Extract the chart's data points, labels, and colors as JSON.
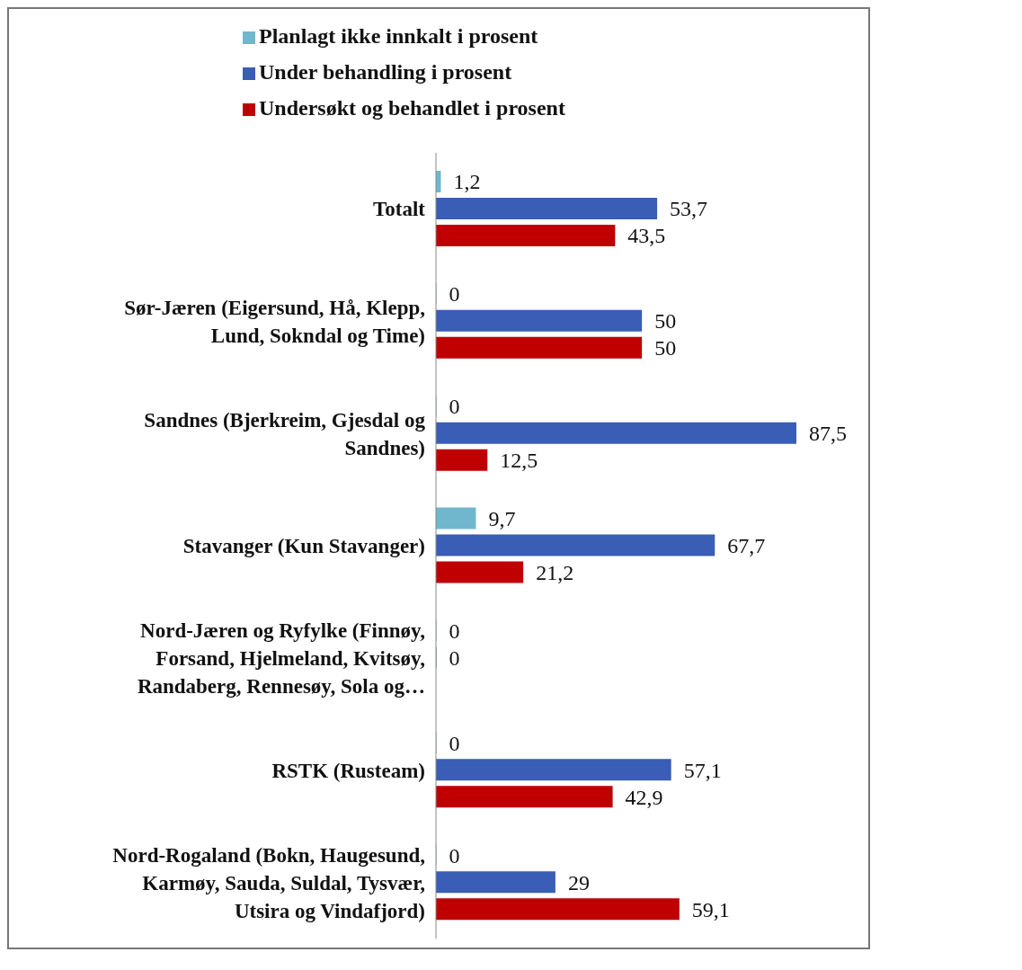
{
  "chart_data": {
    "type": "bar",
    "orientation": "horizontal",
    "legend": "top",
    "grid": false,
    "tick_labels": "y",
    "categories": [
      "Totalt",
      "Sør-Jæren (Eigersund, Hå, Klepp, Lund, Sokndal og Time)",
      "Sandnes (Bjerkreim, Gjesdal og Sandnes)",
      "Stavanger (Kun Stavanger)",
      "Nord-Jæren og Ryfylke (Finnøy, Forsand, Hjelmeland, Kvitsøy, Randaberg, Rennesøy, Sola og…",
      "RSTK (Rusteam)",
      "Nord-Rogaland (Bokn, Haugesund, Karmøy, Sauda, Suldal, Tysvær, Utsira og Vindafjord)"
    ],
    "series": [
      {
        "name": "Planlagt ikke innkalt i prosent",
        "color": "#70b7cd",
        "values": [
          1.2,
          0,
          0,
          9.7,
          0,
          0,
          0
        ],
        "value_labels": [
          "1,2",
          "0",
          "0",
          "9,7",
          "0",
          "0",
          "0"
        ]
      },
      {
        "name": "Under behandling i prosent",
        "color": "#3a5db5",
        "values": [
          53.7,
          50,
          87.5,
          67.7,
          0,
          57.1,
          29
        ],
        "value_labels": [
          "53,7",
          "50",
          "87,5",
          "67,7",
          "0",
          "57,1",
          "29"
        ]
      },
      {
        "name": "Undersøkt og behandlet i prosent",
        "color": "#c00000",
        "values": [
          43.5,
          50,
          12.5,
          21.2,
          null,
          42.9,
          59.1
        ],
        "value_labels": [
          "43,5",
          "50",
          "12,5",
          "21,2",
          null,
          "42,9",
          "59,1"
        ]
      }
    ]
  }
}
